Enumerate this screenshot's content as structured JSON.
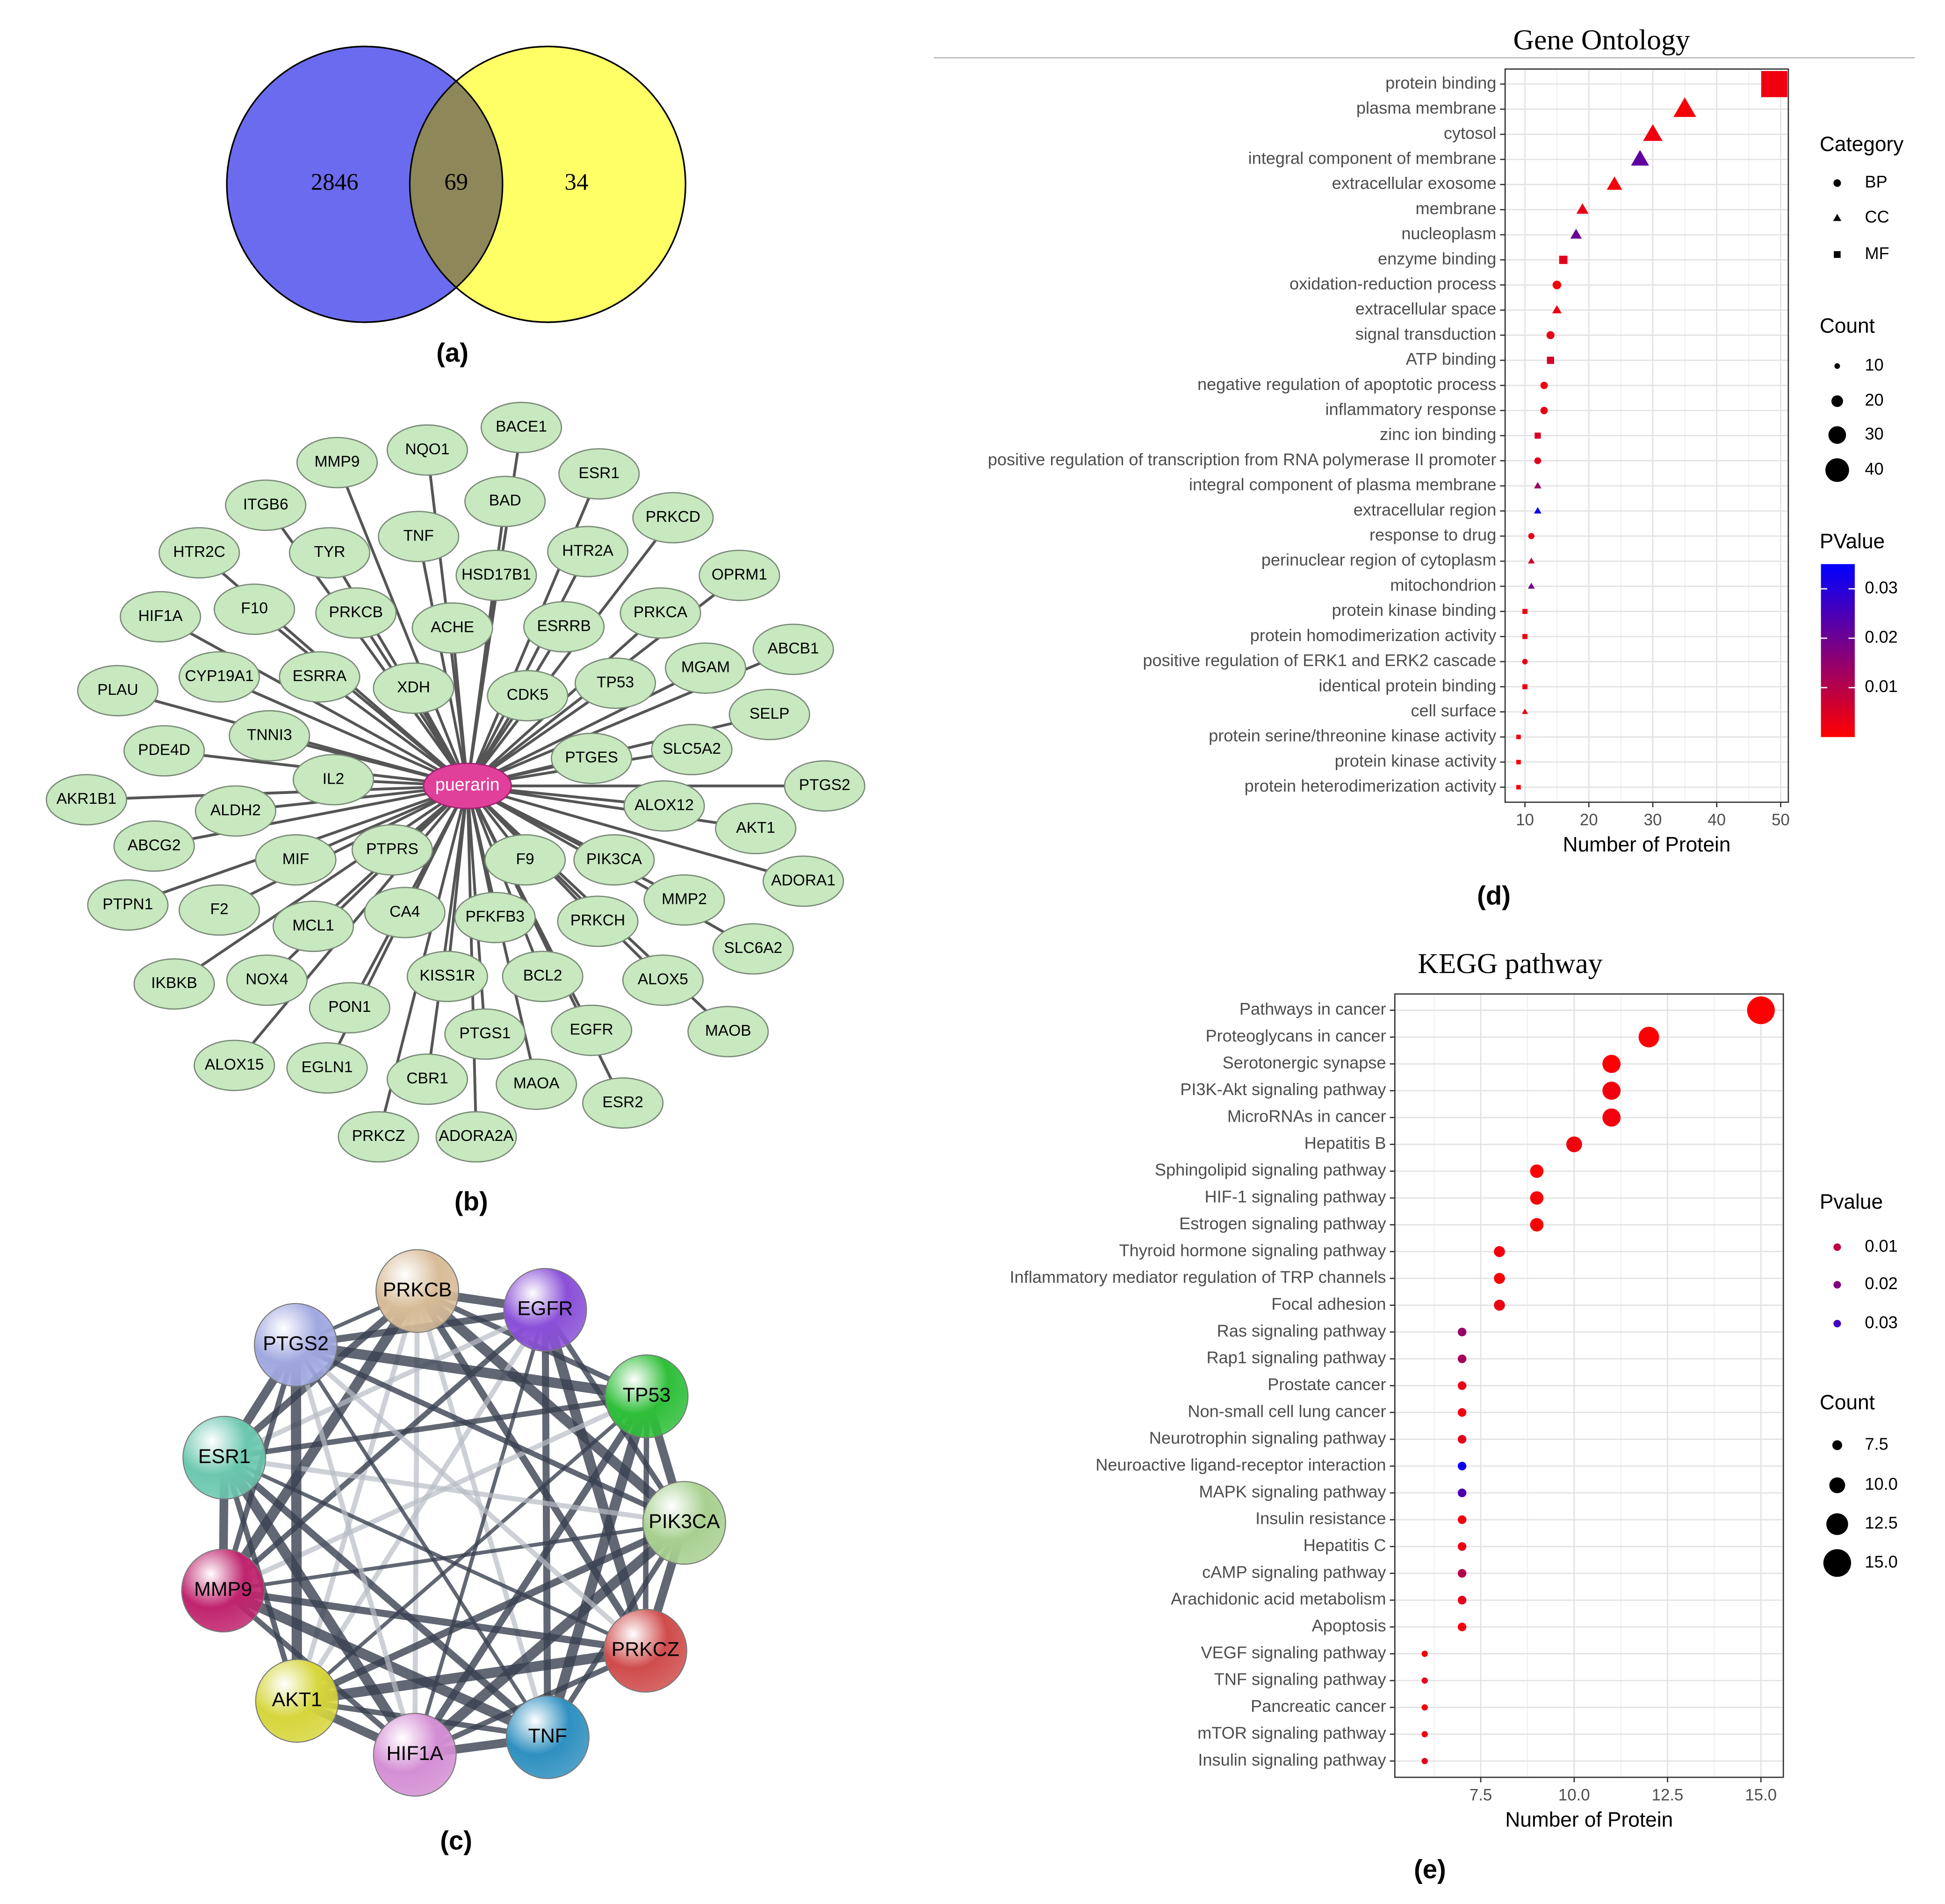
{
  "panel_labels": [
    "(a)",
    "(b)",
    "(c)",
    "(d)",
    "(e)"
  ],
  "venn": {
    "values": [
      2846,
      69,
      34
    ],
    "colors": [
      "#6b6bf0",
      "#ffff66"
    ],
    "overlap_color": "#8e875a"
  },
  "network_b": {
    "center": "puerarin",
    "center_color": "#e0409a",
    "node_color": "#c8e8c0",
    "nodes": [
      "BACE1",
      "NQO1",
      "MMP9",
      "ESR1",
      "BAD",
      "ITGB6",
      "PRKCD",
      "TNF",
      "TYR",
      "HTR2C",
      "HTR2A",
      "HSD17B1",
      "OPRM1",
      "HIF1A",
      "F10",
      "PRKCB",
      "ACHE",
      "ESRRB",
      "PRKCA",
      "ABCB1",
      "CYP19A1",
      "ESRRA",
      "XDH",
      "CDK5",
      "TP53",
      "MGAM",
      "PLAU",
      "SELP",
      "TNNI3",
      "PDE4D",
      "SLC5A2",
      "PTGES",
      "IL2",
      "PTGS2",
      "AKR1B1",
      "ALDH2",
      "ALOX12",
      "AKT1",
      "ABCG2",
      "MIF",
      "PTPRS",
      "F9",
      "PIK3CA",
      "ADORA1",
      "PTPN1",
      "F2",
      "MCL1",
      "CA4",
      "PFKFB3",
      "PRKCH",
      "MMP2",
      "SLC6A2",
      "IKBKB",
      "NOX4",
      "KISS1R",
      "BCL2",
      "ALOX5",
      "PON1",
      "MAOB",
      "PTGS1",
      "EGFR",
      "ALOX15",
      "EGLN1",
      "CBR1",
      "MAOA",
      "ESR2",
      "PRKCZ",
      "ADORA2A"
    ]
  },
  "network_c": {
    "nodes": [
      {
        "label": "PRKCB",
        "color": "#d8bc98"
      },
      {
        "label": "EGFR",
        "color": "#8a50d8"
      },
      {
        "label": "TP53",
        "color": "#2fbf3a"
      },
      {
        "label": "PIK3CA",
        "color": "#a8d090"
      },
      {
        "label": "PRKCZ",
        "color": "#d04c4c"
      },
      {
        "label": "TNF",
        "color": "#2f90c0"
      },
      {
        "label": "HIF1A",
        "color": "#d48fd4"
      },
      {
        "label": "AKT1",
        "color": "#d6d63c"
      },
      {
        "label": "MMP9",
        "color": "#c0246e"
      },
      {
        "label": "ESR1",
        "color": "#6cc8b0"
      },
      {
        "label": "PTGS2",
        "color": "#a0a8e0"
      }
    ]
  },
  "chart_data": [
    {
      "type": "dot",
      "title": "Gene Ontology",
      "xlabel": "Number of Protein",
      "categories": [
        "protein binding",
        "plasma membrane",
        "cytosol",
        "integral component of membrane",
        "extracellular exosome",
        "membrane",
        "nucleoplasm",
        "enzyme binding",
        "oxidation-reduction process",
        "extracellular space",
        "signal transduction",
        "ATP binding",
        "negative regulation of apoptotic process",
        "inflammatory response",
        "zinc ion binding",
        "positive regulation of transcription from RNA polymerase II promoter",
        "integral component of plasma membrane",
        "extracellular region",
        "response to drug",
        "perinuclear region of cytoplasm",
        "mitochondrion",
        "protein kinase binding",
        "protein homodimerization activity",
        "positive regulation of ERK1 and ERK2 cascade",
        "identical protein binding",
        "cell surface",
        "protein serine/threonine kinase activity",
        "protein kinase activity",
        "protein heterodimerization activity"
      ],
      "values": [
        49,
        35,
        30,
        28,
        24,
        19,
        18,
        16,
        15,
        15,
        14,
        14,
        13,
        13,
        12,
        12,
        12,
        12,
        11,
        11,
        11,
        10,
        10,
        10,
        10,
        10,
        9,
        9,
        9
      ],
      "category": [
        "MF",
        "CC",
        "CC",
        "CC",
        "CC",
        "CC",
        "CC",
        "MF",
        "BP",
        "CC",
        "BP",
        "MF",
        "BP",
        "BP",
        "MF",
        "BP",
        "CC",
        "CC",
        "BP",
        "CC",
        "CC",
        "MF",
        "MF",
        "BP",
        "MF",
        "CC",
        "MF",
        "MF",
        "MF"
      ],
      "pvalues": [
        0.002,
        0.001,
        0.002,
        0.022,
        0.001,
        0.003,
        0.02,
        0.004,
        0.001,
        0.002,
        0.003,
        0.006,
        0.002,
        0.003,
        0.005,
        0.004,
        0.014,
        0.033,
        0.003,
        0.006,
        0.019,
        0.002,
        0.002,
        0.003,
        0.003,
        0.004,
        0.002,
        0.001,
        0.002
      ],
      "xlim": [
        6.9,
        51.2
      ],
      "xticks": [
        10,
        20,
        30,
        40,
        50
      ],
      "grid": true,
      "color_lim": [
        0,
        0.035
      ],
      "color_low": "#ff0000",
      "color_high": "#0000ff",
      "colorbar": true,
      "legend": {
        "shape_title": "Category",
        "shapes": [
          "BP",
          "CC",
          "MF"
        ],
        "size_title": "Count",
        "sizes": [
          10,
          20,
          30,
          40
        ],
        "color_title": "PValue",
        "colors": [
          0.01,
          0.02,
          0.03
        ]
      }
    },
    {
      "type": "dot",
      "title": "KEGG pathway",
      "xlabel": "Number of Protein",
      "categories": [
        "Pathways in cancer",
        "Proteoglycans in cancer",
        "Serotonergic synapse",
        "PI3K-Akt signaling pathway",
        "MicroRNAs in cancer",
        "Hepatitis B",
        "Sphingolipid signaling pathway",
        "HIF-1 signaling pathway",
        "Estrogen signaling pathway",
        "Thyroid hormone signaling pathway",
        "Inflammatory mediator regulation of TRP channels",
        "Focal adhesion",
        "Ras signaling pathway",
        "Rap1 signaling pathway",
        "Prostate cancer",
        "Non-small cell lung cancer",
        "Neurotrophin signaling pathway",
        "Neuroactive ligand-receptor interaction",
        "MAPK signaling pathway",
        "Insulin resistance",
        "Hepatitis C",
        "cAMP signaling pathway",
        "Arachidonic acid metabolism",
        "Apoptosis",
        "VEGF signaling pathway",
        "TNF signaling pathway",
        "Pancreatic cancer",
        "mTOR signaling pathway",
        "Insulin signaling pathway"
      ],
      "values": [
        15,
        12,
        11,
        11,
        11,
        10,
        9,
        9,
        9,
        8,
        8,
        8,
        7,
        7,
        7,
        7,
        7,
        7,
        7,
        7,
        7,
        7,
        7,
        7,
        6,
        6,
        6,
        6,
        6
      ],
      "pvalues": [
        0.0001,
        0.0005,
        0.0004,
        0.002,
        0.002,
        0.002,
        0.001,
        0.001,
        0.001,
        0.002,
        0.001,
        0.003,
        0.016,
        0.014,
        0.003,
        0.002,
        0.004,
        0.038,
        0.028,
        0.002,
        0.003,
        0.012,
        0.004,
        0.002,
        0.002,
        0.004,
        0.002,
        0.003,
        0.004
      ],
      "xlim": [
        5.2,
        15.6
      ],
      "xticks": [
        7.5,
        {
          "value": 10,
          "label": "10.0"
        },
        12.5,
        {
          "value": 15,
          "label": "15.0"
        }
      ],
      "grid": true,
      "color_lim": [
        0,
        0.04
      ],
      "color_low": "#ff0000",
      "color_high": "#0000ff",
      "colorbar": false,
      "legend": {
        "size_title": "Count",
        "sizes": [
          7.5,
          {
            "value": 10,
            "label": "10.0"
          },
          12.5,
          {
            "value": 15,
            "label": "15.0"
          }
        ],
        "color_title": "Pvalue",
        "colors": [
          0.01,
          0.02,
          0.03
        ]
      }
    }
  ]
}
